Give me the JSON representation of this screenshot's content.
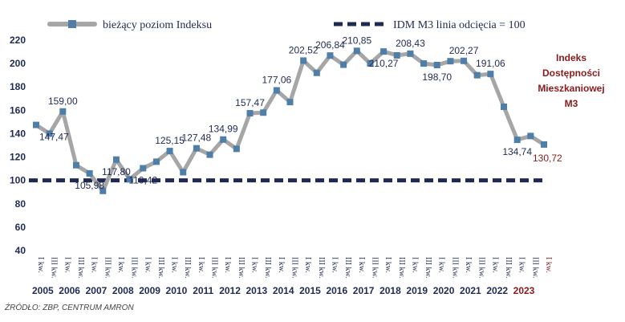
{
  "chart_data": {
    "type": "line",
    "title": "",
    "xlabel": "",
    "ylabel": "",
    "ylim": [
      40,
      220
    ],
    "yticks": [
      40,
      60,
      80,
      100,
      120,
      140,
      160,
      180,
      200,
      220
    ],
    "grid": false,
    "legend_placement": "top",
    "side_label": [
      "Indeks",
      "Dostępności",
      "Mieszkaniowej",
      "M3"
    ],
    "quarter_labels": [
      "I kw.",
      "III kw."
    ],
    "years": [
      "2005",
      "2006",
      "2007",
      "2008",
      "2009",
      "2010",
      "2011",
      "2012",
      "2013",
      "2014",
      "2015",
      "2016",
      "2017",
      "2018",
      "2019",
      "2020",
      "2021",
      "2022",
      "2023"
    ],
    "series": [
      {
        "name": "bieżący poziom Indeksu",
        "color": "#a6a6a6",
        "marker_color": "#4f7fa8",
        "values": [
          147.47,
          140,
          159.0,
          113,
          105.98,
          91,
          117.8,
          101,
          110.42,
          116,
          125.15,
          107,
          127.48,
          122,
          134.99,
          127,
          157.47,
          158,
          177.06,
          167,
          202.52,
          192,
          206.84,
          199,
          210.85,
          200,
          210.27,
          207,
          208.43,
          200,
          198.7,
          202,
          202.27,
          190,
          191.06,
          163,
          134.74,
          138,
          130.72
        ]
      },
      {
        "name": "IDM M3 linia odcięcia = 100",
        "color": "#1f2a52",
        "values": [
          100
        ]
      }
    ],
    "data_labels": [
      {
        "index": 0,
        "text": "147,47"
      },
      {
        "index": 2,
        "text": "159,00"
      },
      {
        "index": 4,
        "text": "105,98"
      },
      {
        "index": 6,
        "text": "117,80"
      },
      {
        "index": 8,
        "text": "110,42"
      },
      {
        "index": 10,
        "text": "125,15"
      },
      {
        "index": 12,
        "text": "127,48"
      },
      {
        "index": 14,
        "text": "134,99"
      },
      {
        "index": 16,
        "text": "157,47"
      },
      {
        "index": 18,
        "text": "177,06"
      },
      {
        "index": 20,
        "text": "202,52"
      },
      {
        "index": 22,
        "text": "206,84"
      },
      {
        "index": 24,
        "text": "210,85"
      },
      {
        "index": 26,
        "text": "210,27"
      },
      {
        "index": 28,
        "text": "208,43"
      },
      {
        "index": 30,
        "text": "198,70"
      },
      {
        "index": 32,
        "text": "202,27"
      },
      {
        "index": 34,
        "text": "191,06"
      },
      {
        "index": 36,
        "text": "134,74"
      },
      {
        "index": 38,
        "text": "130,72"
      }
    ]
  },
  "source": "ŹRÓDŁO: ZBP, CENTRUM AMRON"
}
